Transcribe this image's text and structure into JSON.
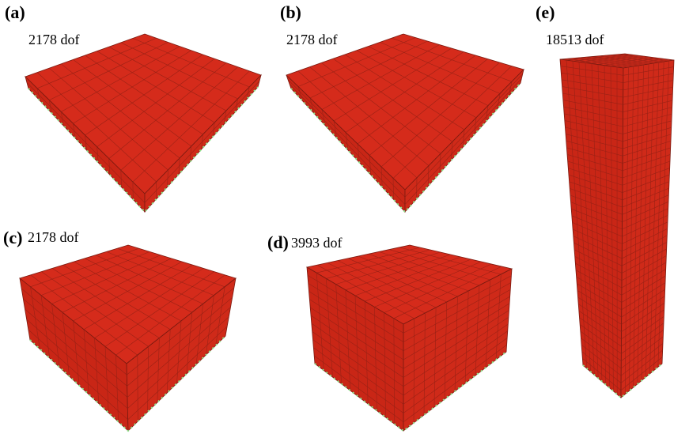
{
  "panels": [
    {
      "label": "(a)",
      "dof": "2178 dof"
    },
    {
      "label": "(b)",
      "dof": "2178 dof"
    },
    {
      "label": "(c)",
      "dof": "2178 dof"
    },
    {
      "label": "(d)",
      "dof": "3993 dof"
    },
    {
      "label": "(e)",
      "dof": "18513 dof"
    }
  ]
}
